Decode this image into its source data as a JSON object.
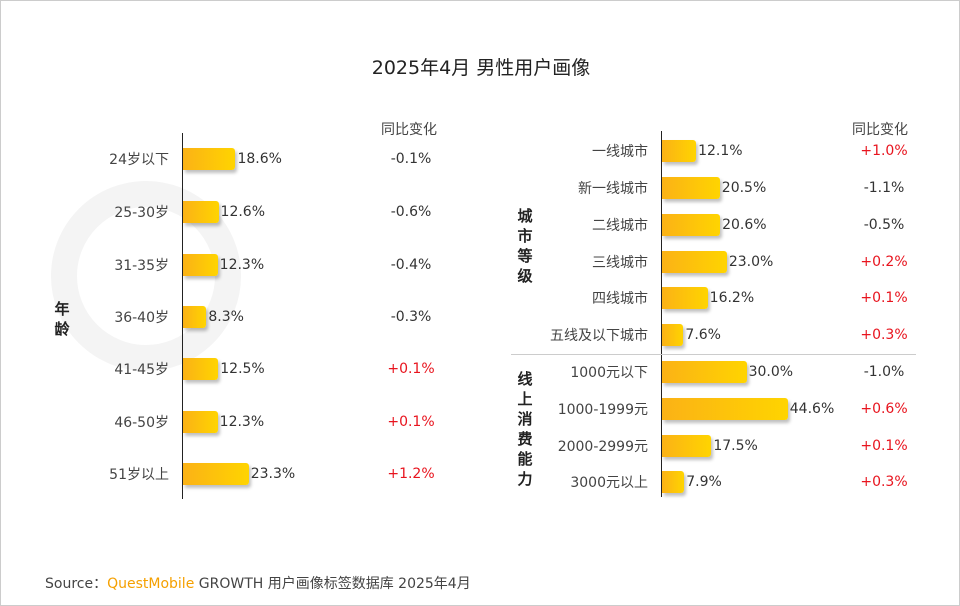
{
  "title": "2025年4月 男性用户画像",
  "watermark": "QUESTMOBILE",
  "change_header": "同比变化",
  "source": {
    "prefix": "Source：",
    "brand": "QuestMobile",
    "rest": "GROWTH 用户画像标签数据库 2025年4月"
  },
  "colors": {
    "positive": "#e8141e",
    "neutral": "#333333",
    "bar_start": "#fbb216",
    "bar_end": "#ffd400"
  },
  "chart_data": [
    {
      "type": "bar",
      "title": "年龄",
      "unit": "%",
      "categories": [
        "24岁以下",
        "25-30岁",
        "31-35岁",
        "36-40岁",
        "41-45岁",
        "46-50岁",
        "51岁以上"
      ],
      "values": [
        18.6,
        12.6,
        12.3,
        8.3,
        12.5,
        12.3,
        23.3
      ],
      "value_labels": [
        "18.6%",
        "12.6%",
        "12.3%",
        "8.3%",
        "12.5%",
        "12.3%",
        "23.3%"
      ],
      "yoy_change": [
        "-0.1%",
        "-0.6%",
        "-0.4%",
        "-0.3%",
        "+0.1%",
        "+0.1%",
        "+1.2%"
      ]
    },
    {
      "type": "bar",
      "title": "城市等级",
      "unit": "%",
      "categories": [
        "一线城市",
        "新一线城市",
        "二线城市",
        "三线城市",
        "四线城市",
        "五线及以下城市"
      ],
      "values": [
        12.1,
        20.5,
        20.6,
        23.0,
        16.2,
        7.6
      ],
      "value_labels": [
        "12.1%",
        "20.5%",
        "20.6%",
        "23.0%",
        "16.2%",
        "7.6%"
      ],
      "yoy_change": [
        "+1.0%",
        "-1.1%",
        "-0.5%",
        "+0.2%",
        "+0.1%",
        "+0.3%"
      ]
    },
    {
      "type": "bar",
      "title": "线上消费能力",
      "unit": "%",
      "categories": [
        "1000元以下",
        "1000-1999元",
        "2000-2999元",
        "3000元以上"
      ],
      "values": [
        30.0,
        44.6,
        17.5,
        7.9
      ],
      "value_labels": [
        "30.0%",
        "44.6%",
        "17.5%",
        "7.9%"
      ],
      "yoy_change": [
        "-1.0%",
        "+0.6%",
        "+0.1%",
        "+0.3%"
      ]
    }
  ]
}
